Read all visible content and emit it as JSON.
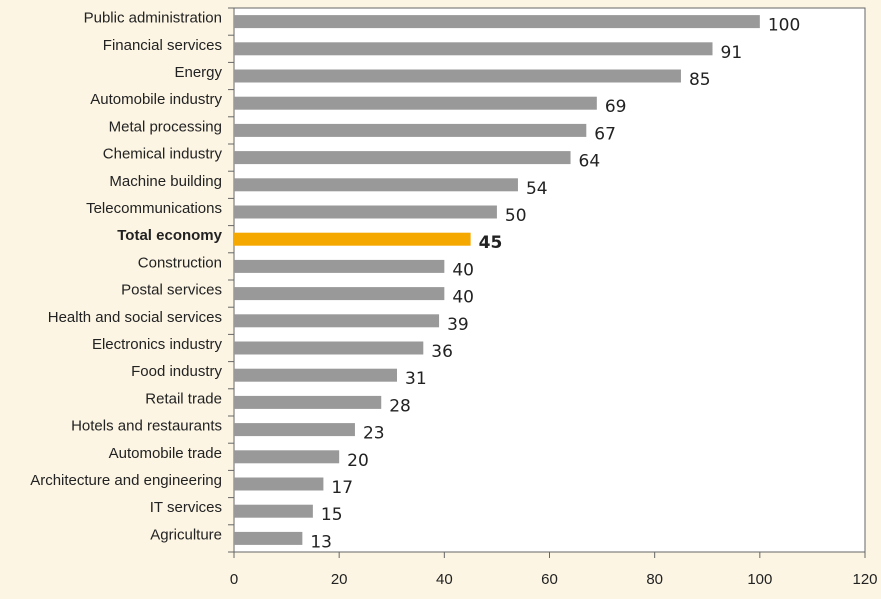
{
  "chart_data": {
    "type": "bar",
    "orientation": "horizontal",
    "categories": [
      "Public administration",
      "Financial services",
      "Energy",
      "Automobile industry",
      "Metal processing",
      "Chemical industry",
      "Machine building",
      "Telecommunications",
      "Total economy",
      "Construction",
      "Postal services",
      "Health and social services",
      "Electronics industry",
      "Food industry",
      "Retail trade",
      "Hotels and restaurants",
      "Automobile trade",
      "Architecture and engineering",
      "IT services",
      "Agriculture"
    ],
    "values": [
      100,
      91,
      85,
      69,
      67,
      64,
      54,
      50,
      45,
      40,
      40,
      39,
      36,
      31,
      28,
      23,
      20,
      17,
      15,
      13
    ],
    "colors": [
      "#999999",
      "#999999",
      "#999999",
      "#999999",
      "#999999",
      "#999999",
      "#999999",
      "#999999",
      "#f5a800",
      "#999999",
      "#999999",
      "#999999",
      "#999999",
      "#999999",
      "#999999",
      "#999999",
      "#999999",
      "#999999",
      "#999999",
      "#999999"
    ],
    "highlight_color": "#f5a800",
    "xlim": [
      0,
      120
    ],
    "xticks": [
      0,
      20,
      40,
      60,
      80,
      100,
      120
    ],
    "grid": false
  }
}
